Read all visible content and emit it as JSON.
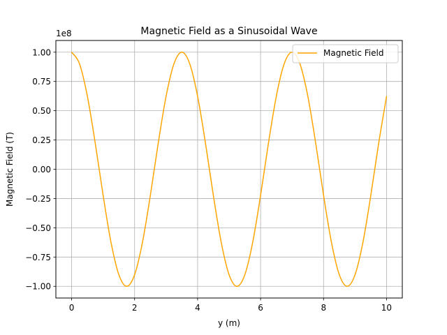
{
  "chart_data": {
    "type": "line",
    "title": "Magnetic Field as a Sinusoidal Wave",
    "xlabel": "y (m)",
    "ylabel": "Magnetic Field (T)",
    "y_scale_label": "1e8",
    "xlim": [
      -0.5,
      10.5
    ],
    "ylim": [
      -1.1,
      1.1
    ],
    "x_ticks": [
      0,
      2,
      4,
      6,
      8,
      10
    ],
    "x_tick_labels": [
      "0",
      "2",
      "4",
      "6",
      "8",
      "10"
    ],
    "y_ticks": [
      1.0,
      0.75,
      0.5,
      0.25,
      0.0,
      -0.25,
      -0.5,
      -0.75,
      -1.0
    ],
    "y_tick_labels": [
      "1.00",
      "0.75",
      "0.50",
      "0.25",
      "0.00",
      "−0.25",
      "−0.50",
      "−0.75",
      "−1.00"
    ],
    "grid": true,
    "legend_position": "top-right",
    "series": [
      {
        "name": "Magnetic Field",
        "color": "#ffa500",
        "x": [
          0,
          0.25,
          0.5,
          0.75,
          1.0,
          1.25,
          1.5,
          1.75,
          2.0,
          2.25,
          2.5,
          2.75,
          3.0,
          3.25,
          3.5,
          3.75,
          4.0,
          4.25,
          4.5,
          4.75,
          5.0,
          5.25,
          5.5,
          5.75,
          6.0,
          6.25,
          6.5,
          6.75,
          7.0,
          7.25,
          7.5,
          7.75,
          8.0,
          8.25,
          8.5,
          8.75,
          9.0,
          9.25,
          9.5,
          9.75,
          10.0
        ],
        "y": [
          1.0,
          0.901,
          0.624,
          0.223,
          -0.223,
          -0.624,
          -0.901,
          -1.0,
          -0.901,
          -0.624,
          -0.223,
          0.223,
          0.624,
          0.901,
          1.0,
          0.901,
          0.624,
          0.223,
          -0.223,
          -0.624,
          -0.901,
          -1.0,
          -0.901,
          -0.624,
          -0.223,
          0.223,
          0.624,
          0.901,
          1.0,
          0.901,
          0.624,
          0.223,
          -0.223,
          -0.624,
          -0.901,
          -1.0,
          -0.901,
          -0.624,
          -0.223,
          0.223,
          0.623
        ]
      }
    ]
  }
}
